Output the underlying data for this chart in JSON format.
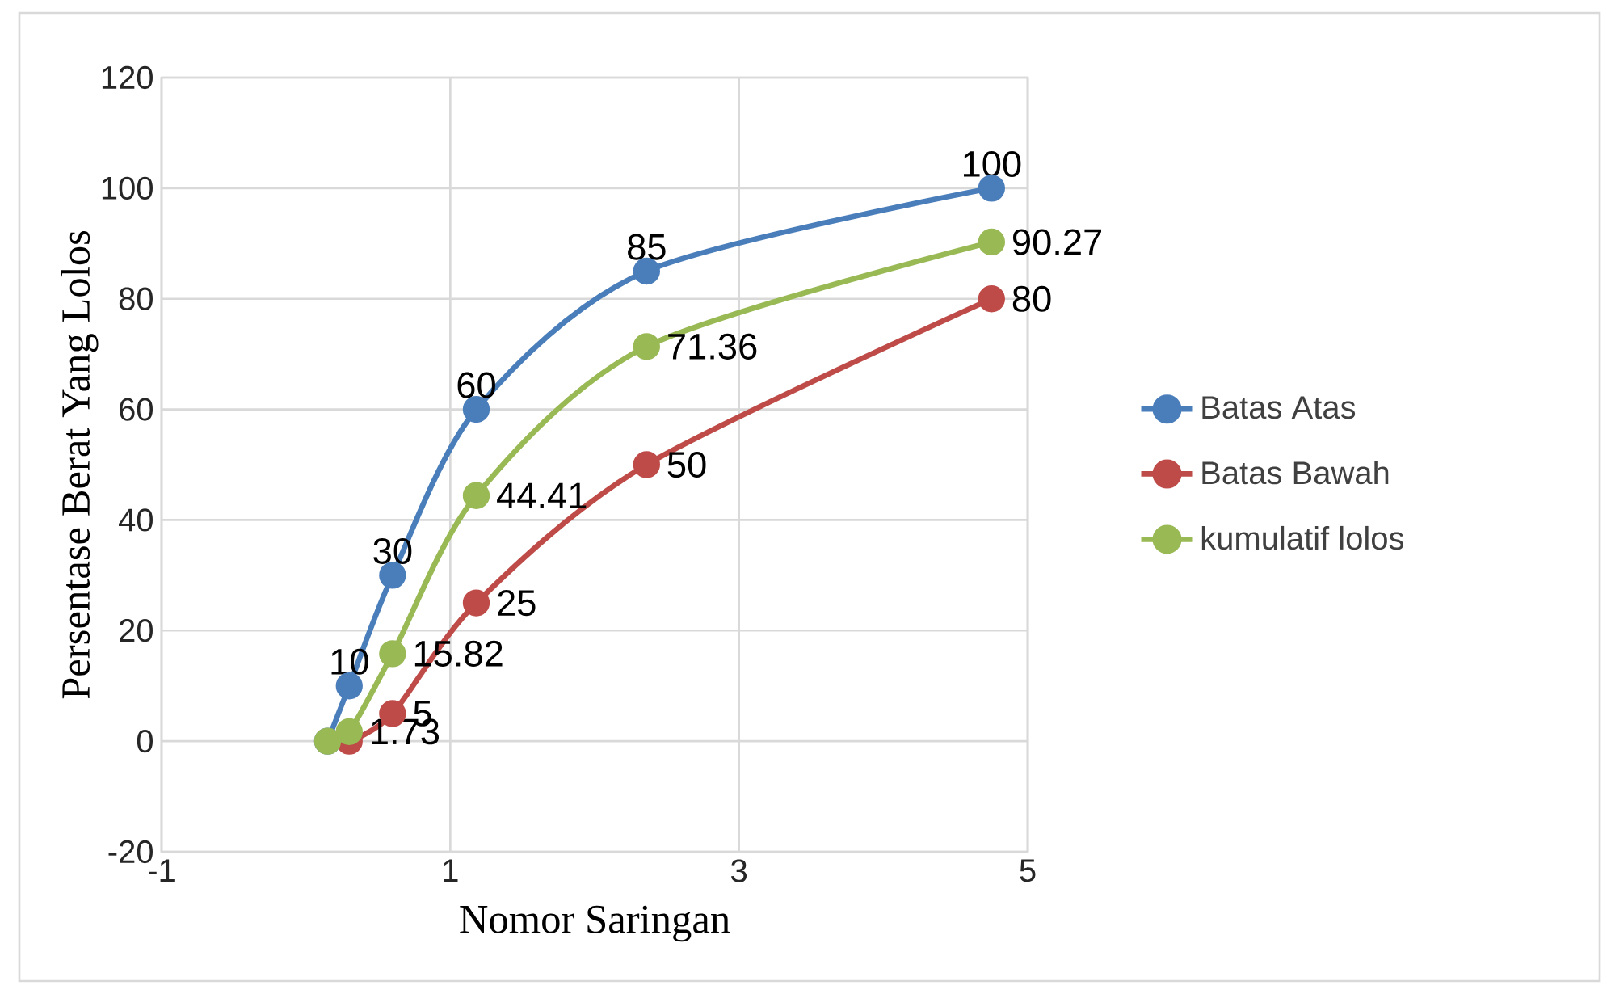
{
  "chart_data": {
    "type": "line",
    "xlabel": "Nomor Saringan",
    "ylabel": "Persentase Berat Yang Lolos",
    "xlim": [
      -1,
      5
    ],
    "xticks": [
      -1,
      1,
      3,
      5
    ],
    "ylim": [
      -20,
      120
    ],
    "yticks": [
      -20,
      0,
      20,
      40,
      60,
      80,
      100,
      120
    ],
    "grid": true,
    "legend": "right",
    "marker": "circle",
    "series": [
      {
        "name": "Batas Atas",
        "color": "#4a7ebb",
        "x": [
          0.15,
          0.3,
          0.6,
          1.18,
          2.36,
          4.75
        ],
        "values": [
          0,
          10,
          30,
          60,
          85,
          100
        ],
        "value_labels": [
          null,
          "10",
          "30",
          "60",
          "85",
          "100"
        ]
      },
      {
        "name": "Batas Bawah",
        "color": "#be4b48",
        "x": [
          0.3,
          0.6,
          1.18,
          2.36,
          4.75
        ],
        "values": [
          0,
          5,
          25,
          50,
          80
        ],
        "value_labels": [
          null,
          "5",
          "25",
          "50",
          "80"
        ]
      },
      {
        "name": "kumulatif lolos",
        "color": "#98b954",
        "x": [
          0.15,
          0.3,
          0.6,
          1.18,
          2.36,
          4.75
        ],
        "values": [
          0,
          1.73,
          15.82,
          44.41,
          71.36,
          90.27
        ],
        "value_labels": [
          null,
          "1.73",
          "15.82",
          "44.41",
          "71.36",
          "90.27"
        ]
      }
    ]
  }
}
